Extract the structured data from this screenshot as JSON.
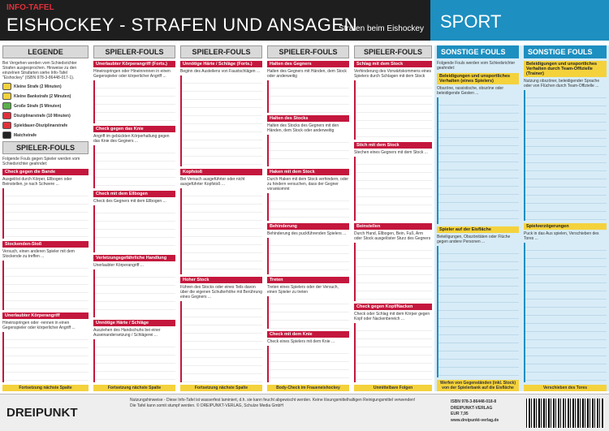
{
  "header": {
    "label": "INFO-TAFEL",
    "title": "EISHOCKEY - STRAFEN UND ANSAGEN",
    "subtitle": "Strafen beim Eishockey",
    "category": "SPORT"
  },
  "columns": [
    {
      "title": "LEGENDE",
      "intro": "Bei Vergehen werden vom Schiedsrichter Strafen ausgesprochen. Hinweise zu den einzelnen Strafarten siehe Info-Tafel \"Eishockey\" (ISBN 978-3-86448-017-1).",
      "legend": [
        "Kleine Strafe (2 Minuten)",
        "Kleine Bankstrafe (2 Minuten)",
        "Große Strafe (5 Minuten)",
        "Disziplinarstrafe (10 Minuten)",
        "Spieldauer-Disziplinarstrafe",
        "Matchstrafe"
      ],
      "subtitle": "SPIELER-FOULS",
      "subintro": "Folgende Fouls gegen Spieler werden vom Schiedsrichter geahndet:",
      "sections": [
        {
          "heading": "Check gegen die Bande",
          "text": "Ausgelöst durch Körper, Ellbogen oder Beinstellen, je nach Schwere ..."
        },
        {
          "heading": "Stockenden-Stoß",
          "text": "Versuch, einen anderen Spieler mit dem Stockende zu treffen ..."
        },
        {
          "heading": "Unerlaubter Körperangriff",
          "text": "Hineinspringen oder -rennen in einen Gegenspieler oder körperlicher Angriff ..."
        }
      ],
      "footer": "Fortsetzung nächste Spalte"
    },
    {
      "title": "SPIELER-FOULS",
      "sections": [
        {
          "heading": "Unerlaubter Körperangriff (Forts.)",
          "text": "Hineinspringen oder Hineinrennen in einen Gegenspieler oder körperlicher Angriff ..."
        },
        {
          "heading": "Check gegen das Knie",
          "text": "Angriff im gebückten Körperhaltung gegen das Knie des Gegners ..."
        },
        {
          "heading": "Check mit dem Ellbogen",
          "text": "Check des Gegners mit dem Ellbogen ..."
        },
        {
          "heading": "Verletzungsgefährliche Handlung",
          "text": "Unerlaubter Körperangriff ..."
        },
        {
          "heading": "Unnötige Härte / Schläge",
          "text": "Ausziehen des Handschuhs bei einer Auseinandersetzung / Schlägerei ..."
        }
      ],
      "footer": "Fortsetzung nächste Spalte"
    },
    {
      "title": "SPIELER-FOULS",
      "sections": [
        {
          "heading": "Unnötige Härte / Schläge (Forts.)",
          "text": "Beginn des Austeilens von Faustschlägen ..."
        },
        {
          "heading": "Kopfstoß",
          "text": "Bei Versuch ausgeführter oder nicht ausgeführter Kopfstoß ..."
        },
        {
          "heading": "Hoher Stock",
          "text": "Führen des Stocks oder eines Teils davon über die eigenen Schulterhöhe mit Berührung eines Gegners ..."
        }
      ],
      "footer": "Fortsetzung nächste Spalte"
    },
    {
      "title": "SPIELER-FOULS",
      "sections": [
        {
          "heading": "Halten des Gegners",
          "text": "Halten des Gegners mit Händen, dem Stock oder anderweitig"
        },
        {
          "heading": "Halten des Stocks",
          "text": "Halten des Stocks des Gegners mit den Händen, dem Stock oder anderweitig"
        },
        {
          "heading": "Haken mit dem Stock",
          "text": "Durch Haken mit dem Stock verhindern, oder zu hindern versuchen, dass der Gegner vorankommt"
        },
        {
          "heading": "Behinderung",
          "text": "Behinderung des puckführenden Spielers ..."
        },
        {
          "heading": "Treten",
          "text": "Treten eines Spielers oder der Versuch, einen Spieler zu treten"
        },
        {
          "heading": "Check mit dem Knie",
          "text": "Check eines Spielers mit dem Knie ..."
        }
      ],
      "footer": "Body-Check im Fraueneishockey"
    },
    {
      "title": "SPIELER-FOULS",
      "sections": [
        {
          "heading": "Schlag mit dem Stock",
          "text": "Verhinderung des Vorwärtskommens eines Spielers durch Schlagen mit dem Stock"
        },
        {
          "heading": "Stich mit dem Stock",
          "text": "Stechen eines Gegners mit dem Stock ..."
        },
        {
          "heading": "Beinstellen",
          "text": "Durch Hand, Ellbogen, Bein, Fuß, Arm oder Stock ausgelöster Sturz des Gegners"
        },
        {
          "heading": "Check gegen Kopf/Nacken",
          "text": "Check oder Schlag mit dem Körper gegen Kopf oder Nackenbereich ..."
        }
      ],
      "footer": "Unmittelbare Folgen"
    },
    {
      "title": "SONSTIGE FOULS",
      "intro": "Folgende Fouls werden vom Schiedsrichter geahndet:",
      "sections": [
        {
          "heading": "Beleidigungen und unsportliches Verhalten (eines Spielers)",
          "text": "Obszöne, rassistische, obszöne oder beleidigende Gesten ..."
        },
        {
          "heading": "Spieler auf der Eisfläche",
          "text": "Beteiligungen, Obszönitäten oder Flüche gegen andere Personen ..."
        }
      ],
      "footer": "Werfen von Gegenständen (inkl. Stock) von der Spielerbank auf die Eisfläche"
    },
    {
      "title": "SONSTIGE FOULS",
      "sections": [
        {
          "heading": "Beleidigungen und unsportliches Verhalten durch Team-Offizielle (Trainer)",
          "text": "Nutzung obszöner, beleidigender Sprache oder von Flüchen durch Team-Offizielle ..."
        },
        {
          "heading": "Spielverzögerungen",
          "text": "Puck in das Aus spielen, Verschieben des Tores ..."
        }
      ],
      "footer": "Verschieben des Tores"
    }
  ],
  "footer": {
    "brand": "DREIPUNKT",
    "notice": "Nutzungshinweise - Diese Info-Tafel ist wasserfest laminiert, d.h. sie kann feucht abgewischt werden. Keine lösungsmittelhaltigen Reinigungsmittel verwenden! Die Tafel kann somit stumpf werden. © DREIPUNKT-VERLAG, Schulze Media GmbH",
    "isbn": "ISBN 978-3-86448-018-8",
    "publisher": "DREIPUNKT-VERLAG",
    "price": "EUR 7,95",
    "url": "www.dreipunkt-verlag.de"
  }
}
